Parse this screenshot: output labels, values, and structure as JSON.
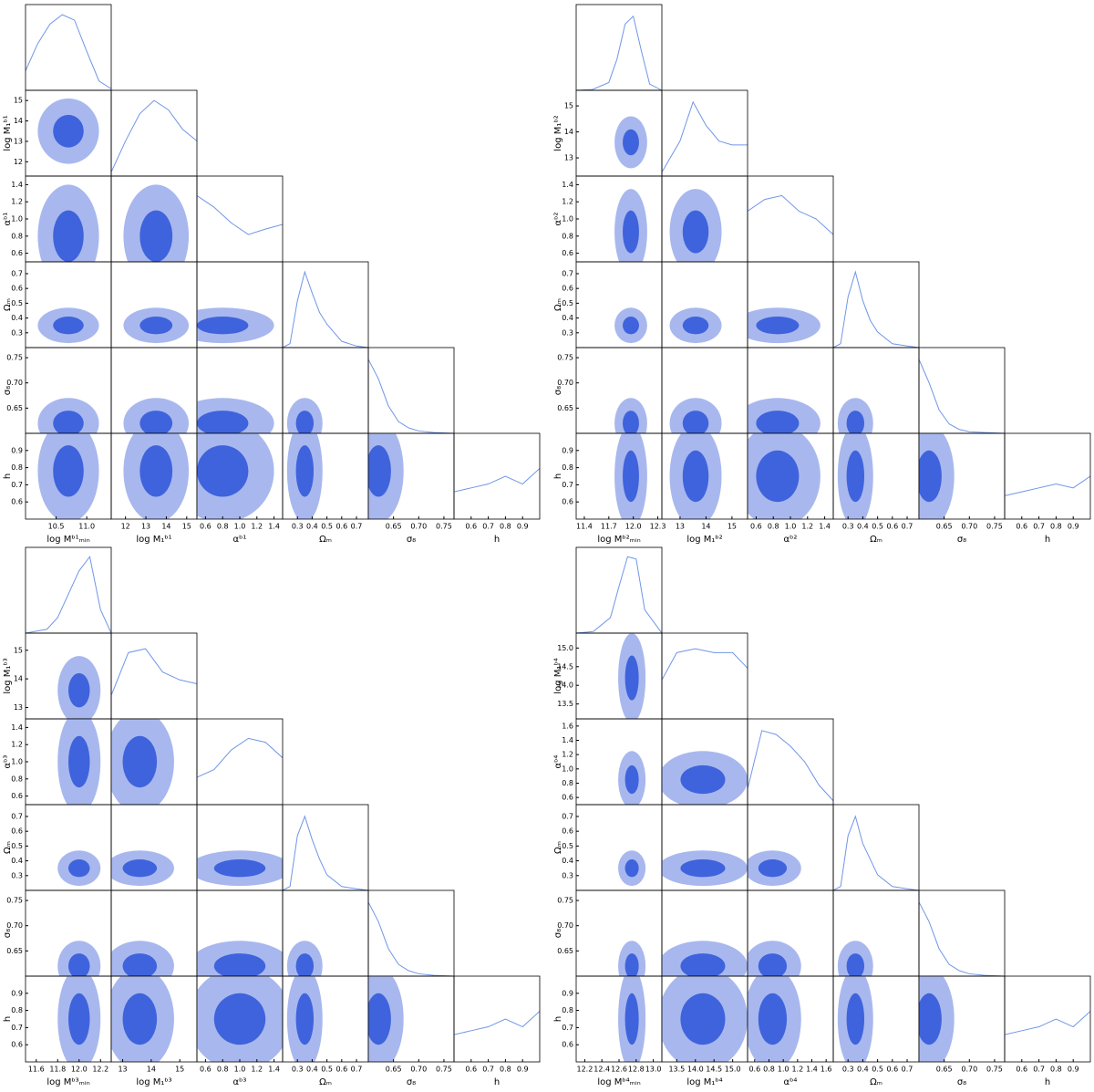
{
  "chart_data": [
    {
      "type": "corner",
      "kde_ylim": [
        0,
        1.1
      ],
      "line_color": "#6f96e8",
      "contour_colors": [
        "#a8b8ee",
        "#3f63dc"
      ],
      "params": [
        {
          "label": "log Mᵇ¹ₘᵢₙ",
          "lim": [
            10.0,
            11.4
          ],
          "ticks": [
            10.5,
            {
              "value": 11,
              "label": "11.0"
            }
          ],
          "mean": 10.7,
          "sd": 0.25,
          "kde_x": [
            10.0,
            10.2,
            10.4,
            10.6,
            10.8,
            11.0,
            11.2,
            11.4
          ],
          "kde_y": [
            0.25,
            0.6,
            0.85,
            0.97,
            0.9,
            0.5,
            0.12,
            0.02
          ]
        },
        {
          "label": "log M₁ᵇ¹",
          "lim": [
            11.3,
            15.5
          ],
          "ticks": [
            12,
            13,
            14,
            15
          ],
          "mean": 13.5,
          "sd": 0.8,
          "kde_x": [
            11.3,
            12,
            12.7,
            13.4,
            14.1,
            14.8,
            15.5
          ],
          "kde_y": [
            0.05,
            0.45,
            0.8,
            0.97,
            0.85,
            0.6,
            0.45
          ]
        },
        {
          "label": "αᵇ¹",
          "lim": [
            0.5,
            1.5
          ],
          "ticks": [
            0.6,
            0.8,
            {
              "value": 1,
              "label": "1.0"
            },
            1.2,
            1.4
          ],
          "mean": 0.8,
          "sd": 0.3,
          "kde_x": [
            0.5,
            0.7,
            0.9,
            1.1,
            1.3,
            1.5
          ],
          "kde_y": [
            0.85,
            0.7,
            0.5,
            0.35,
            0.42,
            0.48
          ]
        },
        {
          "label": "Ωₘ",
          "lim": [
            0.2,
            0.78
          ],
          "ticks": [
            0.3,
            0.4,
            0.5,
            0.6,
            0.7
          ],
          "mean": 0.35,
          "sd": 0.06,
          "kde_x": [
            0.2,
            0.25,
            0.3,
            0.35,
            0.4,
            0.45,
            0.5,
            0.6,
            0.7,
            0.78
          ],
          "kde_y": [
            0,
            0.05,
            0.6,
            0.97,
            0.7,
            0.45,
            0.3,
            0.08,
            0.02,
            0
          ]
        },
        {
          "label": "σ₈",
          "lim": [
            0.6,
            0.77
          ],
          "ticks": [
            0.65,
            {
              "value": 0.7,
              "label": "0.70"
            },
            0.75
          ],
          "mean": 0.62,
          "sd": 0.025,
          "kde_x": [
            0.6,
            0.62,
            0.64,
            0.66,
            0.68,
            0.7,
            0.73,
            0.77
          ],
          "kde_y": [
            0.95,
            0.7,
            0.35,
            0.15,
            0.07,
            0.03,
            0.01,
            0
          ]
        },
        {
          "label": "h",
          "lim": [
            0.5,
            1.0
          ],
          "ticks": [
            0.6,
            0.7,
            0.8,
            0.9
          ],
          "mean": 0.78,
          "sd": 0.15,
          "kde_x": [
            0.5,
            0.6,
            0.7,
            0.8,
            0.9,
            1.0
          ],
          "kde_y": [
            0.35,
            0.4,
            0.45,
            0.55,
            0.45,
            0.65
          ]
        }
      ]
    },
    {
      "type": "corner",
      "kde_ylim": [
        0,
        1.1
      ],
      "line_color": "#6f96e8",
      "contour_colors": [
        "#a8b8ee",
        "#3f63dc"
      ],
      "params": [
        {
          "label": "log Mᵇ²ₘᵢₙ",
          "lim": [
            11.3,
            12.35
          ],
          "ticks": [
            11.4,
            11.7,
            {
              "value": 12,
              "label": "12.0"
            },
            12.3
          ],
          "mean": 11.97,
          "sd": 0.1,
          "kde_x": [
            11.3,
            11.5,
            11.7,
            11.8,
            11.9,
            12.0,
            12.1,
            12.2,
            12.35
          ],
          "kde_y": [
            0,
            0.01,
            0.1,
            0.4,
            0.85,
            0.95,
            0.5,
            0.08,
            0
          ]
        },
        {
          "label": "log M₁ᵇ²",
          "lim": [
            12.3,
            15.6
          ],
          "ticks": [
            13,
            14,
            15
          ],
          "mean": 13.6,
          "sd": 0.5,
          "kde_x": [
            12.3,
            13,
            13.5,
            14,
            14.5,
            15,
            15.6
          ],
          "kde_y": [
            0.05,
            0.45,
            0.95,
            0.65,
            0.45,
            0.4,
            0.4
          ]
        },
        {
          "label": "αᵇ²",
          "lim": [
            0.5,
            1.5
          ],
          "ticks": [
            0.6,
            0.8,
            {
              "value": 1,
              "label": "1.0"
            },
            1.2,
            1.4
          ],
          "mean": 0.85,
          "sd": 0.25,
          "kde_x": [
            0.5,
            0.7,
            0.9,
            1.1,
            1.3,
            1.5
          ],
          "kde_y": [
            0.65,
            0.8,
            0.85,
            0.65,
            0.55,
            0.35
          ]
        },
        {
          "label": "Ωₘ",
          "lim": [
            0.2,
            0.78
          ],
          "ticks": [
            0.3,
            0.4,
            0.5,
            0.6,
            0.7
          ],
          "mean": 0.35,
          "sd": 0.06,
          "kde_x": [
            0.2,
            0.25,
            0.3,
            0.35,
            0.4,
            0.45,
            0.5,
            0.6,
            0.7,
            0.78
          ],
          "kde_y": [
            0,
            0.05,
            0.65,
            0.97,
            0.6,
            0.35,
            0.2,
            0.05,
            0.02,
            0
          ]
        },
        {
          "label": "σ₈",
          "lim": [
            0.6,
            0.77
          ],
          "ticks": [
            0.65,
            {
              "value": 0.7,
              "label": "0.70"
            },
            0.75
          ],
          "mean": 0.62,
          "sd": 0.025,
          "kde_x": [
            0.6,
            0.62,
            0.64,
            0.66,
            0.68,
            0.7,
            0.73,
            0.77
          ],
          "kde_y": [
            0.95,
            0.65,
            0.3,
            0.12,
            0.05,
            0.02,
            0.01,
            0
          ]
        },
        {
          "label": "h",
          "lim": [
            0.5,
            1.0
          ],
          "ticks": [
            0.6,
            0.7,
            0.8,
            0.9
          ],
          "mean": 0.75,
          "sd": 0.15,
          "kde_x": [
            0.5,
            0.6,
            0.7,
            0.8,
            0.9,
            1.0
          ],
          "kde_y": [
            0.3,
            0.35,
            0.4,
            0.45,
            0.4,
            0.55
          ]
        }
      ]
    },
    {
      "type": "corner",
      "kde_ylim": [
        0,
        1.1
      ],
      "line_color": "#6f96e8",
      "contour_colors": [
        "#a8b8ee",
        "#3f63dc"
      ],
      "params": [
        {
          "label": "log Mᵇ³ₘᵢₙ",
          "lim": [
            11.5,
            12.3
          ],
          "ticks": [
            11.6,
            11.8,
            {
              "value": 12,
              "label": "12.0"
            },
            12.2
          ],
          "mean": 12.0,
          "sd": 0.1,
          "kde_x": [
            11.5,
            11.7,
            11.8,
            11.9,
            12.0,
            12.1,
            12.2,
            12.3
          ],
          "kde_y": [
            0,
            0.05,
            0.2,
            0.5,
            0.8,
            0.98,
            0.3,
            0
          ]
        },
        {
          "label": "log M₁ᵇ³",
          "lim": [
            12.6,
            15.6
          ],
          "ticks": [
            13,
            14,
            15
          ],
          "mean": 13.6,
          "sd": 0.6,
          "kde_x": [
            12.6,
            13.2,
            13.8,
            14.4,
            15,
            15.6
          ],
          "kde_y": [
            0.3,
            0.85,
            0.9,
            0.6,
            0.5,
            0.45
          ]
        },
        {
          "label": "αᵇ³",
          "lim": [
            0.5,
            1.5
          ],
          "ticks": [
            0.6,
            0.8,
            {
              "value": 1,
              "label": "1.0"
            },
            1.2,
            1.4
          ],
          "mean": 1.0,
          "sd": 0.3,
          "kde_x": [
            0.5,
            0.7,
            0.9,
            1.1,
            1.3,
            1.5
          ],
          "kde_y": [
            0.35,
            0.45,
            0.7,
            0.85,
            0.8,
            0.6
          ]
        },
        {
          "label": "Ωₘ",
          "lim": [
            0.2,
            0.78
          ],
          "ticks": [
            0.3,
            0.4,
            0.5,
            0.6,
            0.7
          ],
          "mean": 0.35,
          "sd": 0.06,
          "kde_x": [
            0.2,
            0.25,
            0.3,
            0.35,
            0.4,
            0.45,
            0.5,
            0.6,
            0.7,
            0.78
          ],
          "kde_y": [
            0,
            0.05,
            0.7,
            0.95,
            0.65,
            0.4,
            0.2,
            0.05,
            0.02,
            0
          ]
        },
        {
          "label": "σ₈",
          "lim": [
            0.6,
            0.77
          ],
          "ticks": [
            0.65,
            {
              "value": 0.7,
              "label": "0.70"
            },
            0.75
          ],
          "mean": 0.62,
          "sd": 0.025,
          "kde_x": [
            0.6,
            0.62,
            0.64,
            0.66,
            0.68,
            0.7,
            0.73,
            0.77
          ],
          "kde_y": [
            0.95,
            0.7,
            0.35,
            0.15,
            0.07,
            0.03,
            0.01,
            0
          ]
        },
        {
          "label": "h",
          "lim": [
            0.5,
            1.0
          ],
          "ticks": [
            0.6,
            0.7,
            0.8,
            0.9
          ],
          "mean": 0.75,
          "sd": 0.15,
          "kde_x": [
            0.5,
            0.6,
            0.7,
            0.8,
            0.9,
            1.0
          ],
          "kde_y": [
            0.35,
            0.4,
            0.45,
            0.55,
            0.45,
            0.65
          ]
        }
      ]
    },
    {
      "type": "corner",
      "kde_ylim": [
        0,
        1.1
      ],
      "line_color": "#6f96e8",
      "contour_colors": [
        "#a8b8ee",
        "#3f63dc"
      ],
      "params": [
        {
          "label": "log Mᵇ⁴ₘᵢₙ",
          "lim": [
            12.1,
            13.1
          ],
          "ticks": [
            12.2,
            12.4,
            12.6,
            12.8,
            {
              "value": 13,
              "label": "13.0"
            }
          ],
          "mean": 12.75,
          "sd": 0.08,
          "kde_x": [
            12.1,
            12.3,
            12.5,
            12.6,
            12.7,
            12.8,
            12.9,
            13.1
          ],
          "kde_y": [
            0,
            0.02,
            0.2,
            0.6,
            0.98,
            0.95,
            0.3,
            0
          ]
        },
        {
          "label": "log M₁ᵇ⁴",
          "lim": [
            13.1,
            15.4
          ],
          "ticks": [
            13.5,
            {
              "value": 14,
              "label": "14.0"
            },
            14.5,
            {
              "value": 15,
              "label": "15.0"
            }
          ],
          "mean": 14.2,
          "sd": 0.6,
          "kde_x": [
            13.1,
            13.5,
            14,
            14.5,
            15,
            15.4
          ],
          "kde_y": [
            0.5,
            0.85,
            0.9,
            0.85,
            0.85,
            0.65
          ]
        },
        {
          "label": "αᵇ⁴",
          "lim": [
            0.5,
            1.7
          ],
          "ticks": [
            0.6,
            0.8,
            {
              "value": 1,
              "label": "1.0"
            },
            1.2,
            1.4,
            1.6
          ],
          "mean": 0.85,
          "sd": 0.2,
          "kde_x": [
            0.5,
            0.7,
            0.9,
            1.1,
            1.3,
            1.5,
            1.7
          ],
          "kde_y": [
            0.2,
            0.95,
            0.9,
            0.75,
            0.55,
            0.25,
            0.05
          ]
        },
        {
          "label": "Ωₘ",
          "lim": [
            0.2,
            0.78
          ],
          "ticks": [
            0.3,
            0.4,
            0.5,
            0.6,
            0.7
          ],
          "mean": 0.35,
          "sd": 0.06,
          "kde_x": [
            0.2,
            0.25,
            0.3,
            0.35,
            0.4,
            0.45,
            0.5,
            0.6,
            0.7,
            0.78
          ],
          "kde_y": [
            0,
            0.05,
            0.7,
            0.95,
            0.6,
            0.4,
            0.2,
            0.05,
            0.02,
            0
          ]
        },
        {
          "label": "σ₈",
          "lim": [
            0.6,
            0.77
          ],
          "ticks": [
            0.65,
            {
              "value": 0.7,
              "label": "0.70"
            },
            0.75
          ],
          "mean": 0.62,
          "sd": 0.025,
          "kde_x": [
            0.6,
            0.62,
            0.64,
            0.66,
            0.68,
            0.7,
            0.73,
            0.77
          ],
          "kde_y": [
            0.95,
            0.7,
            0.35,
            0.15,
            0.07,
            0.03,
            0.01,
            0
          ]
        },
        {
          "label": "h",
          "lim": [
            0.5,
            1.0
          ],
          "ticks": [
            0.6,
            0.7,
            0.8,
            0.9
          ],
          "mean": 0.75,
          "sd": 0.15,
          "kde_x": [
            0.5,
            0.6,
            0.7,
            0.8,
            0.9,
            1.0
          ],
          "kde_y": [
            0.35,
            0.4,
            0.45,
            0.55,
            0.45,
            0.65
          ]
        }
      ]
    }
  ]
}
